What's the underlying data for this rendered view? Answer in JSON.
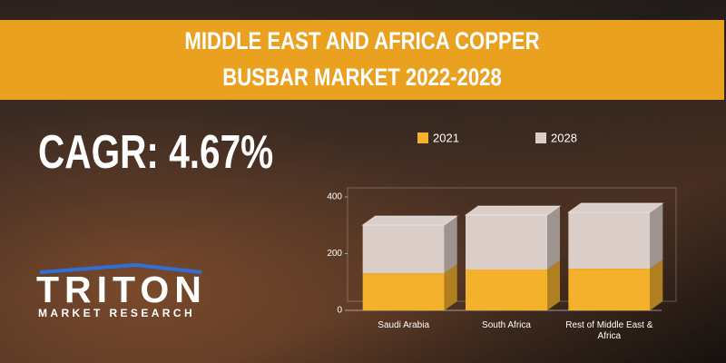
{
  "chart_data": {
    "type": "bar3d_stacked",
    "title": [
      "MIDDLE EAST AND AFRICA COPPER",
      "BUSBAR MARKET 2022-2028"
    ],
    "annotation": "CAGR: 4.67%",
    "categories": [
      "Saudi Arabia",
      "South Africa",
      "Rest of Middle East & Africa"
    ],
    "series": [
      {
        "name": "2021",
        "color": "#f4b12c",
        "values": [
          131,
          144,
          147
        ]
      },
      {
        "name": "2028",
        "color": "#dbcdc7",
        "values": [
          170,
          192,
          199
        ]
      }
    ],
    "ylim": [
      0,
      400
    ],
    "yticks": [
      0,
      200,
      400
    ]
  },
  "brand": {
    "name": "TRITON",
    "tagline": "MARKET RESEARCH"
  }
}
